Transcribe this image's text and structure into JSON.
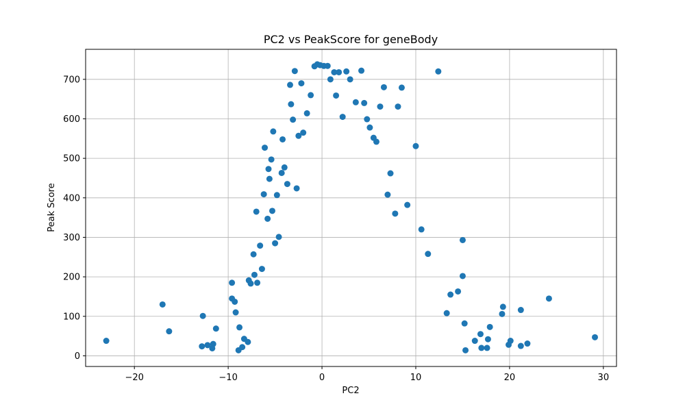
{
  "chart_data": {
    "type": "scatter",
    "title": "PC2 vs PeakScore for geneBody",
    "xlabel": "PC2",
    "ylabel": "Peak Score",
    "xlim": [
      -25.2,
      31.4
    ],
    "ylim": [
      -27,
      776
    ],
    "xticks": [
      -20,
      -10,
      0,
      10,
      20,
      30
    ],
    "yticks": [
      0,
      100,
      200,
      300,
      400,
      500,
      600,
      700
    ],
    "xtick_labels": [
      "−20",
      "−10",
      "0",
      "10",
      "20",
      "30"
    ],
    "ytick_labels": [
      "0",
      "100",
      "200",
      "300",
      "400",
      "500",
      "600",
      "700"
    ],
    "grid": true,
    "marker_color": "#1f77b4",
    "points": [
      [
        -23.0,
        38
      ],
      [
        -17.0,
        130
      ],
      [
        -16.3,
        62
      ],
      [
        -12.7,
        101
      ],
      [
        -12.8,
        24
      ],
      [
        -12.2,
        27
      ],
      [
        -11.6,
        30
      ],
      [
        -11.7,
        19
      ],
      [
        -11.3,
        69
      ],
      [
        -9.6,
        185
      ],
      [
        -9.6,
        145
      ],
      [
        -9.3,
        137
      ],
      [
        -9.2,
        110
      ],
      [
        -8.9,
        14
      ],
      [
        -8.8,
        72
      ],
      [
        -8.5,
        22
      ],
      [
        -8.3,
        43
      ],
      [
        -7.9,
        35
      ],
      [
        -7.8,
        191
      ],
      [
        -7.6,
        183
      ],
      [
        -7.3,
        257
      ],
      [
        -7.2,
        205
      ],
      [
        -7.0,
        365
      ],
      [
        -6.9,
        185
      ],
      [
        -6.6,
        279
      ],
      [
        -6.4,
        220
      ],
      [
        -6.2,
        409
      ],
      [
        -6.1,
        527
      ],
      [
        -5.8,
        347
      ],
      [
        -5.7,
        473
      ],
      [
        -5.6,
        448
      ],
      [
        -5.4,
        497
      ],
      [
        -5.3,
        367
      ],
      [
        -5.2,
        568
      ],
      [
        -5.0,
        285
      ],
      [
        -4.8,
        407
      ],
      [
        -4.6,
        301
      ],
      [
        -4.3,
        463
      ],
      [
        -4.2,
        548
      ],
      [
        -4.0,
        477
      ],
      [
        -3.7,
        435
      ],
      [
        -3.4,
        686
      ],
      [
        -3.3,
        637
      ],
      [
        -3.1,
        598
      ],
      [
        -2.9,
        721
      ],
      [
        -2.7,
        424
      ],
      [
        -2.5,
        557
      ],
      [
        -2.2,
        690
      ],
      [
        -2.0,
        565
      ],
      [
        -1.6,
        614
      ],
      [
        -1.2,
        660
      ],
      [
        -0.8,
        733
      ],
      [
        -0.5,
        738
      ],
      [
        -0.2,
        736
      ],
      [
        0.2,
        734
      ],
      [
        0.6,
        734
      ],
      [
        0.9,
        700
      ],
      [
        1.3,
        718
      ],
      [
        1.5,
        659
      ],
      [
        1.8,
        718
      ],
      [
        2.2,
        605
      ],
      [
        2.6,
        720
      ],
      [
        3.0,
        700
      ],
      [
        3.6,
        642
      ],
      [
        4.2,
        722
      ],
      [
        4.5,
        640
      ],
      [
        4.8,
        599
      ],
      [
        5.1,
        578
      ],
      [
        5.5,
        552
      ],
      [
        5.8,
        542
      ],
      [
        6.2,
        631
      ],
      [
        6.6,
        680
      ],
      [
        7.0,
        408
      ],
      [
        7.3,
        462
      ],
      [
        7.8,
        360
      ],
      [
        8.1,
        631
      ],
      [
        8.5,
        679
      ],
      [
        9.1,
        382
      ],
      [
        10.0,
        531
      ],
      [
        10.6,
        320
      ],
      [
        11.3,
        258
      ],
      [
        12.4,
        720
      ],
      [
        13.3,
        108
      ],
      [
        13.7,
        155
      ],
      [
        14.5,
        163
      ],
      [
        15.0,
        293
      ],
      [
        15.0,
        202
      ],
      [
        15.2,
        82
      ],
      [
        15.3,
        14
      ],
      [
        16.3,
        38
      ],
      [
        16.9,
        55
      ],
      [
        17.0,
        20
      ],
      [
        17.6,
        20
      ],
      [
        17.7,
        42
      ],
      [
        17.9,
        73
      ],
      [
        19.2,
        106
      ],
      [
        19.3,
        124
      ],
      [
        19.9,
        28
      ],
      [
        20.1,
        38
      ],
      [
        21.2,
        116
      ],
      [
        21.2,
        25
      ],
      [
        21.9,
        31
      ],
      [
        24.2,
        145
      ],
      [
        29.1,
        47
      ]
    ]
  }
}
